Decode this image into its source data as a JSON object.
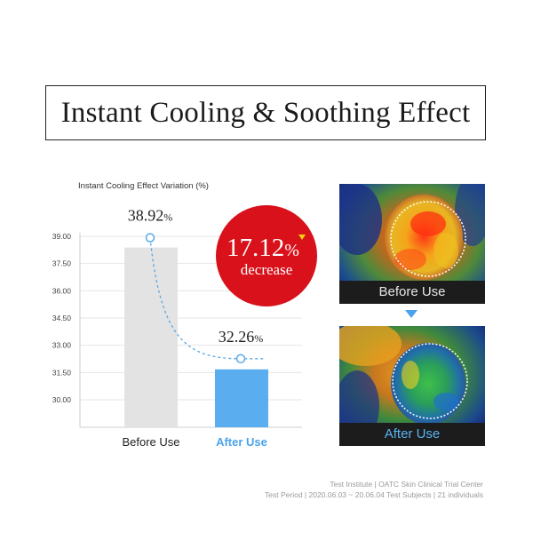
{
  "title": "Instant Cooling & Soothing Effect",
  "chart_data": {
    "type": "bar",
    "title": "Instant Cooling Effect Variation (%)",
    "categories": [
      "Before Use",
      "After Use"
    ],
    "values": [
      38.92,
      32.26
    ],
    "value_labels": [
      "38.92",
      "32.26"
    ],
    "value_unit": "%",
    "yticks": [
      "39.00",
      "37.50",
      "36.00",
      "34.50",
      "33.00",
      "31.50",
      "30.00"
    ],
    "ylim": [
      28.5,
      39.0
    ],
    "grid": true,
    "colors": {
      "before": "#e3e3e3",
      "after": "#5aaef0",
      "line": "#59a8e6",
      "badge": "#d8111b",
      "after_label": "#4ba3ea"
    },
    "decrease_badge": {
      "value": "17.12",
      "unit": "%",
      "label": "decrease"
    }
  },
  "thermal": {
    "before_label": "Before Use",
    "after_label": "After Use"
  },
  "footer": {
    "line1": "Test Institute | OATC Skin Clinical Trial Center",
    "line2": "Test Period | 2020.06.03 ~ 20.06.04 Test Subjects | 21 individuals"
  }
}
